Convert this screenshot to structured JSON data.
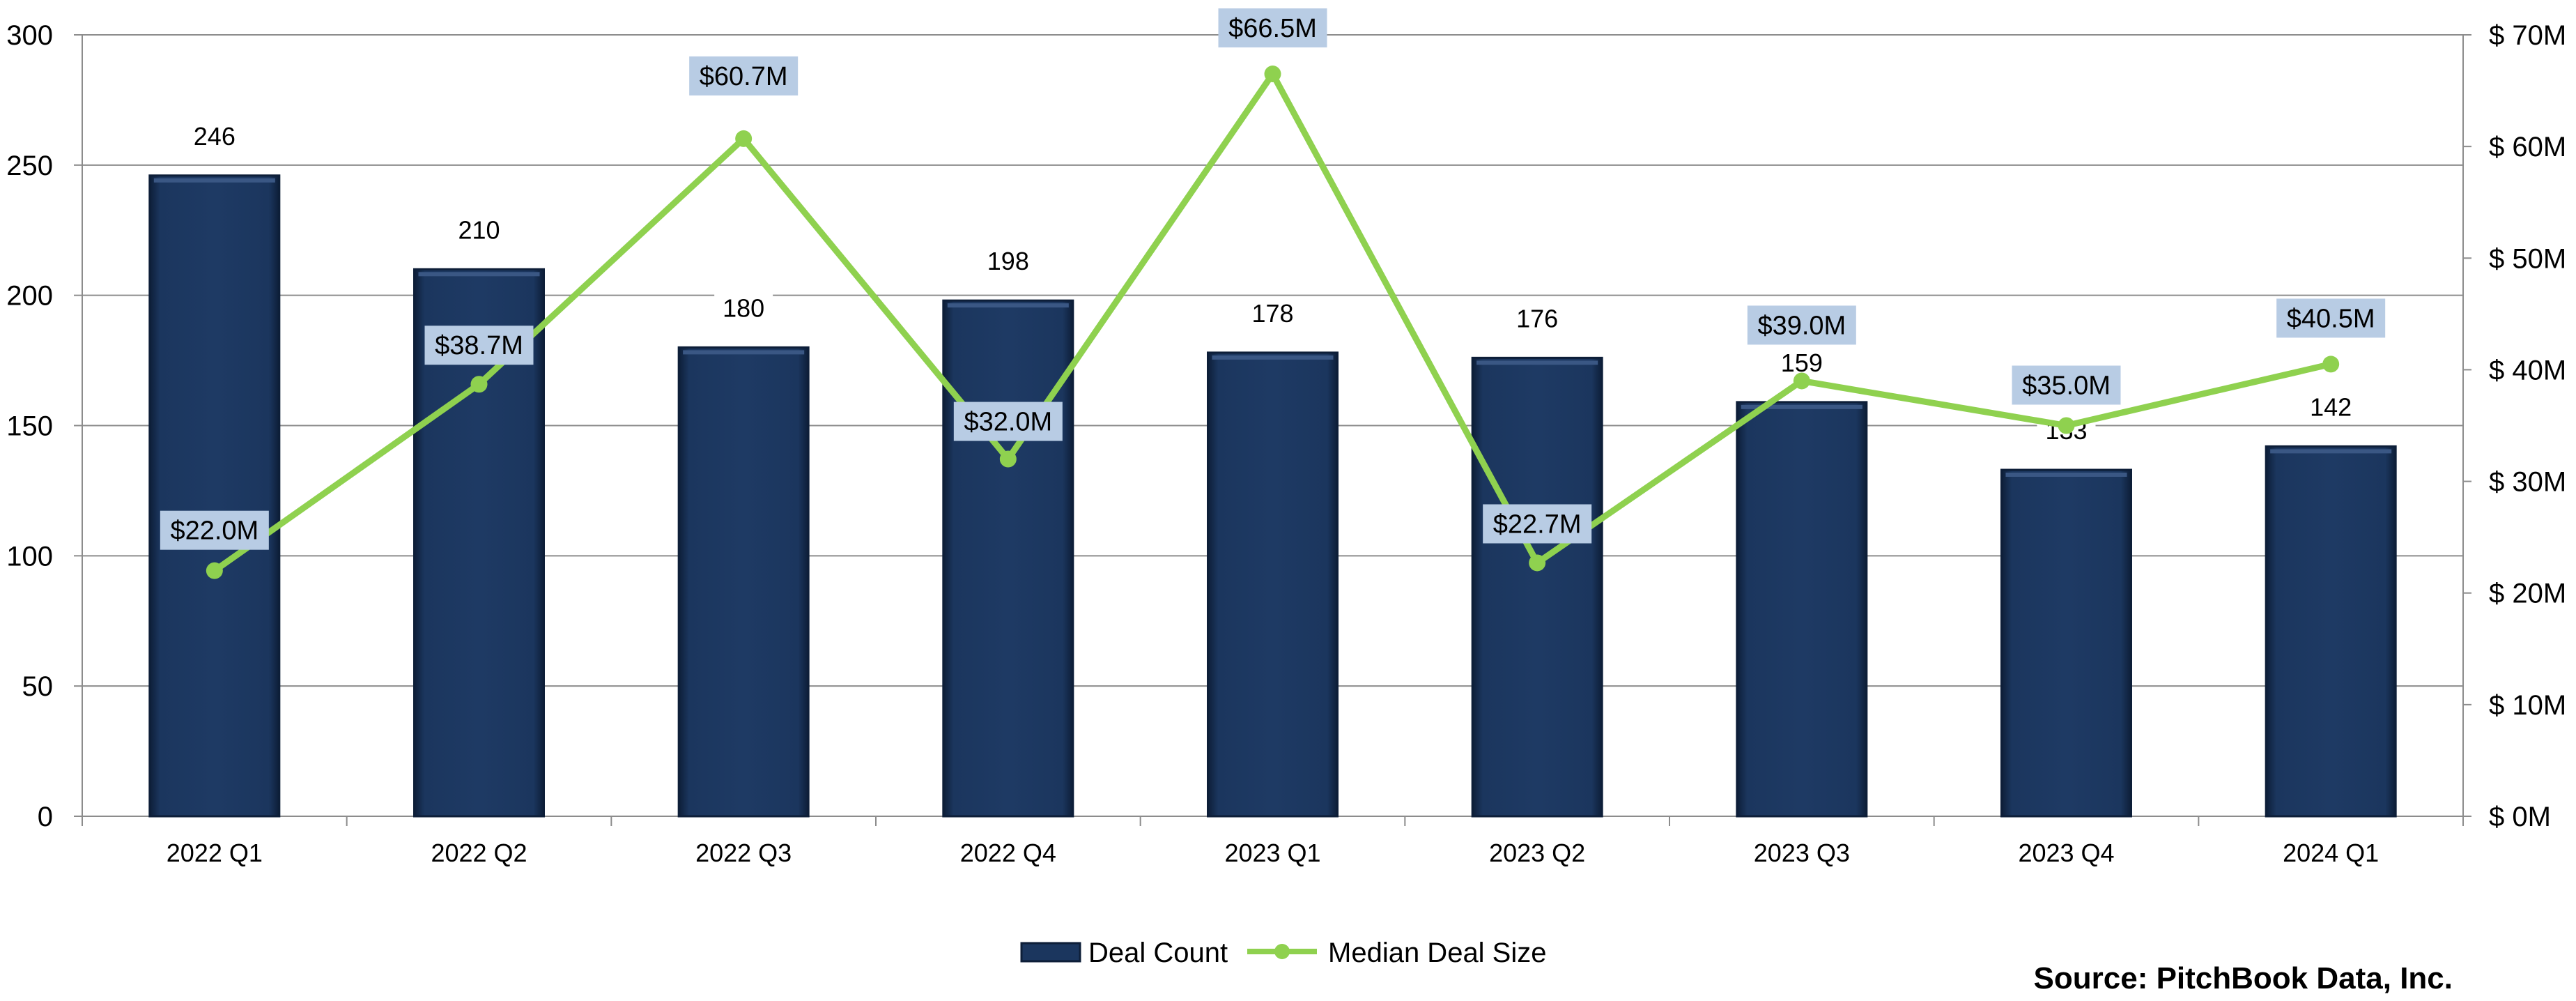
{
  "chart_data": {
    "type": "bar",
    "categories": [
      "2022 Q1",
      "2022 Q2",
      "2022 Q3",
      "2022 Q4",
      "2023 Q1",
      "2023 Q2",
      "2023 Q3",
      "2023 Q4",
      "2024 Q1"
    ],
    "series": [
      {
        "name": "Deal Count",
        "type": "bar",
        "axis": "left",
        "values": [
          246,
          210,
          180,
          198,
          178,
          176,
          159,
          133,
          142
        ],
        "labels": [
          "246",
          "210",
          "180",
          "198",
          "178",
          "176",
          "159",
          "133",
          "142"
        ]
      },
      {
        "name": "Median Deal Size",
        "type": "line",
        "axis": "right",
        "values": [
          22.0,
          38.7,
          60.7,
          32.0,
          66.5,
          22.7,
          39.0,
          35.0,
          40.5
        ],
        "labels": [
          "$22.0M",
          "$38.7M",
          "$60.7M",
          "$32.0M",
          "$66.5M",
          "$22.7M",
          "$39.0M",
          "$35.0M",
          "$40.5M"
        ]
      }
    ],
    "y_left": {
      "range": [
        0,
        300
      ],
      "ticks": [
        0,
        50,
        100,
        150,
        200,
        250,
        300
      ],
      "tick_labels": [
        "0",
        "50",
        "100",
        "150",
        "200",
        "250",
        "300"
      ]
    },
    "y_right": {
      "range": [
        0,
        70
      ],
      "ticks": [
        0,
        10,
        20,
        30,
        40,
        50,
        60,
        70
      ],
      "tick_labels": [
        "$ 0M",
        "$ 10M",
        "$ 20M",
        "$ 30M",
        "$ 40M",
        "$ 50M",
        "$ 60M",
        "$ 70M"
      ]
    },
    "grid": true,
    "legend": {
      "position": "bottom",
      "entries": [
        "Deal Count",
        "Median Deal Size"
      ]
    },
    "source": "Source: PitchBook Data, Inc.",
    "colors": {
      "bar": "#1b365e",
      "bar_edge": "#0d1e38",
      "bar_highlight": "#3a5784",
      "line": "#8fd14f",
      "label_box": "#b8cce4",
      "grid": "#8c8c8c",
      "axis": "#8c8c8c"
    }
  }
}
